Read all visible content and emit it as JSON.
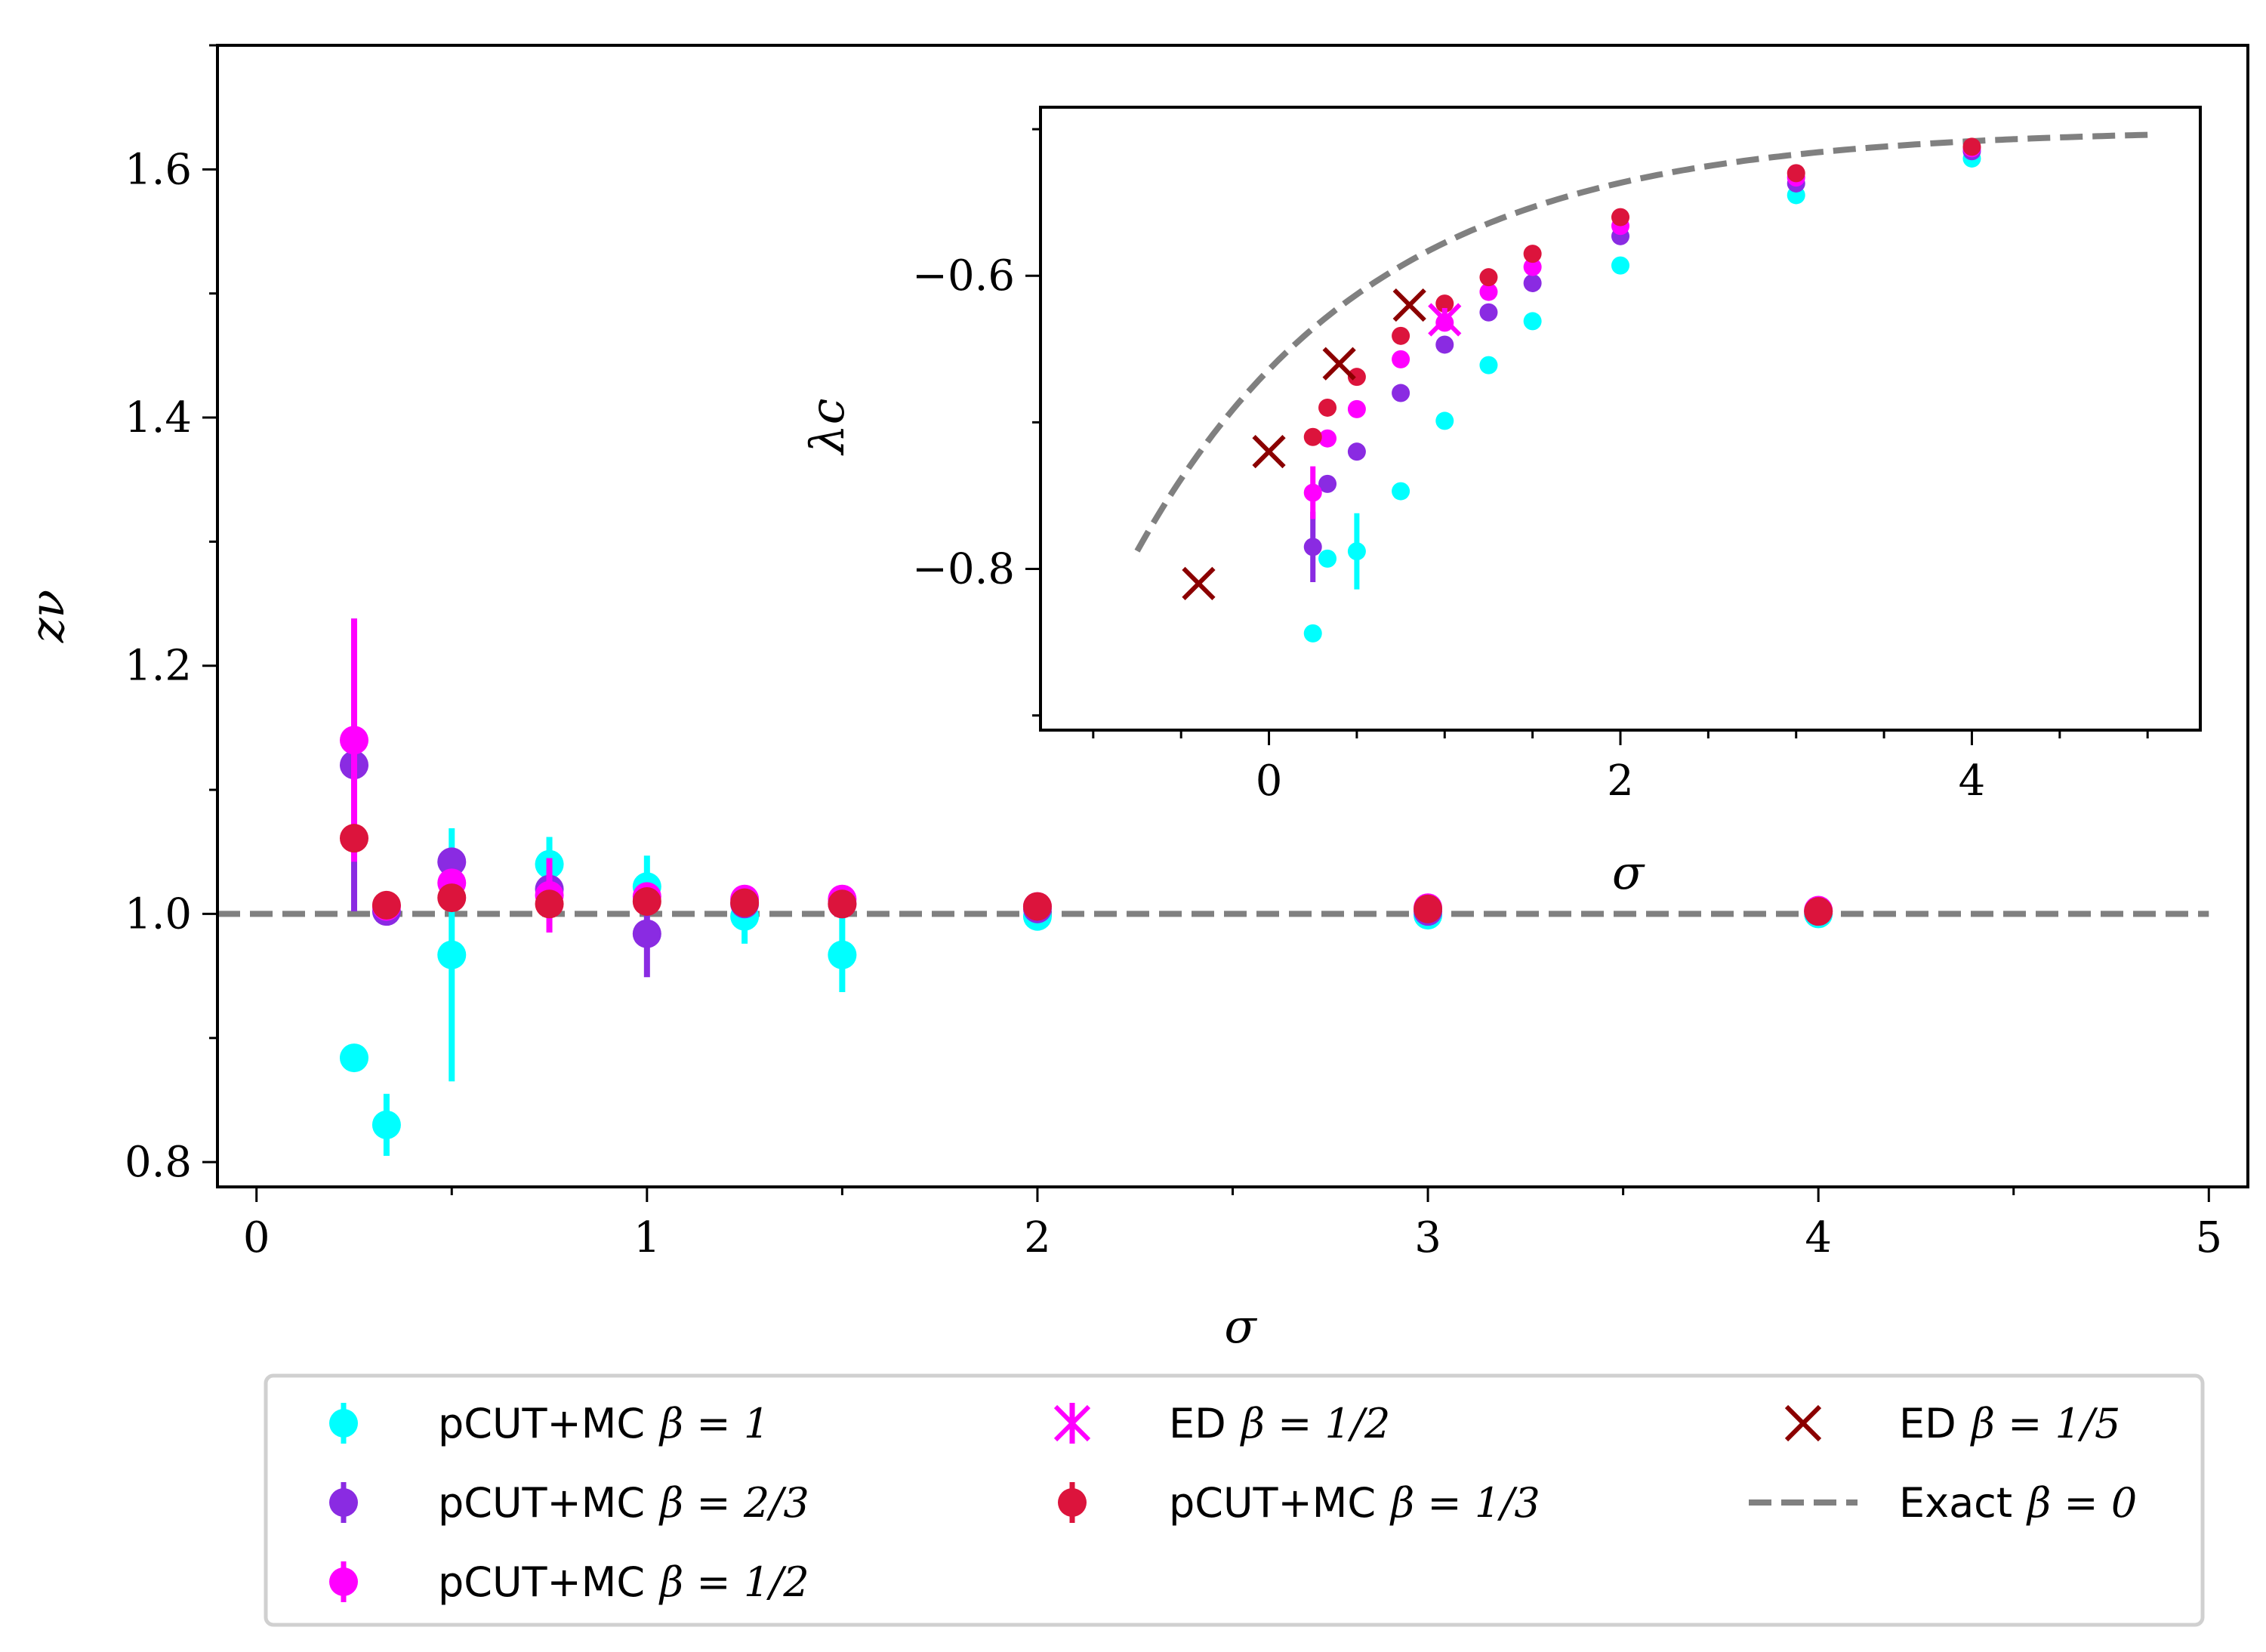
{
  "colors": {
    "beta1": "#00ffff",
    "beta23": "#8a2be2",
    "beta12": "#ff00ff",
    "beta13": "#dc143c",
    "ed15": "#8b0000",
    "exact": "#808080"
  },
  "chart_data": [
    {
      "type": "scatter",
      "xlabel": "σ",
      "ylabel": "zν",
      "xlim": [
        -0.1,
        5.1
      ],
      "ylim": [
        0.78,
        1.7
      ],
      "xticks": [
        0,
        1,
        2,
        3,
        4,
        5
      ],
      "xtick_labels": [
        "0",
        "1",
        "2",
        "3",
        "4",
        "5"
      ],
      "yticks": [
        0.8,
        1.0,
        1.2,
        1.4,
        1.6
      ],
      "ytick_labels": [
        "0.8",
        "1.0",
        "1.2",
        "1.4",
        "1.6"
      ],
      "series": [
        {
          "name": "pCUT+MC β = 1",
          "color_key": "beta1",
          "marker": "circle",
          "points": [
            {
              "x": 0.25,
              "y": 0.884,
              "err": 0.0
            },
            {
              "x": 0.333,
              "y": 0.83,
              "err": 0.025
            },
            {
              "x": 0.5,
              "y": 0.967,
              "err": 0.102
            },
            {
              "x": 0.75,
              "y": 1.04,
              "err": 0.022
            },
            {
              "x": 1.0,
              "y": 1.022,
              "err": 0.025
            },
            {
              "x": 1.25,
              "y": 0.998,
              "err": 0.022
            },
            {
              "x": 1.5,
              "y": 0.967,
              "err": 0.03
            },
            {
              "x": 2.0,
              "y": 0.998,
              "err": 0.0
            },
            {
              "x": 3.0,
              "y": 0.999,
              "err": 0.0
            },
            {
              "x": 4.0,
              "y": 1.0,
              "err": 0.0
            }
          ]
        },
        {
          "name": "pCUT+MC β = 2/3",
          "color_key": "beta23",
          "marker": "circle",
          "points": [
            {
              "x": 0.25,
              "y": 1.12,
              "err": 0.118
            },
            {
              "x": 0.333,
              "y": 1.002,
              "err": 0.0
            },
            {
              "x": 0.5,
              "y": 1.042,
              "err": 0.0
            },
            {
              "x": 0.75,
              "y": 1.02,
              "err": 0.0
            },
            {
              "x": 1.0,
              "y": 0.984,
              "err": 0.035
            },
            {
              "x": 1.25,
              "y": 1.008,
              "err": 0.0
            },
            {
              "x": 1.5,
              "y": 1.008,
              "err": 0.0
            },
            {
              "x": 2.0,
              "y": 1.004,
              "err": 0.0
            },
            {
              "x": 3.0,
              "y": 1.002,
              "err": 0.0
            },
            {
              "x": 4.0,
              "y": 1.002,
              "err": 0.0
            }
          ]
        },
        {
          "name": "pCUT+MC β = 1/2",
          "color_key": "beta12",
          "marker": "circle",
          "points": [
            {
              "x": 0.25,
              "y": 1.14,
              "err": 0.098
            },
            {
              "x": 0.333,
              "y": 1.006,
              "err": 0.0
            },
            {
              "x": 0.5,
              "y": 1.025,
              "err": 0.0
            },
            {
              "x": 0.75,
              "y": 1.015,
              "err": 0.03
            },
            {
              "x": 1.0,
              "y": 1.014,
              "err": 0.0
            },
            {
              "x": 1.25,
              "y": 1.012,
              "err": 0.0
            },
            {
              "x": 1.5,
              "y": 1.012,
              "err": 0.0
            },
            {
              "x": 2.0,
              "y": 1.006,
              "err": 0.0
            },
            {
              "x": 3.0,
              "y": 1.005,
              "err": 0.0
            },
            {
              "x": 4.0,
              "y": 1.003,
              "err": 0.0
            }
          ]
        },
        {
          "name": "pCUT+MC β = 1/3",
          "color_key": "beta13",
          "marker": "circle",
          "points": [
            {
              "x": 0.25,
              "y": 1.061,
              "err": 0.0
            },
            {
              "x": 0.333,
              "y": 1.007,
              "err": 0.0
            },
            {
              "x": 0.5,
              "y": 1.013,
              "err": 0.0
            },
            {
              "x": 0.75,
              "y": 1.008,
              "err": 0.0
            },
            {
              "x": 1.0,
              "y": 1.01,
              "err": 0.0
            },
            {
              "x": 1.25,
              "y": 1.009,
              "err": 0.0
            },
            {
              "x": 1.5,
              "y": 1.008,
              "err": 0.0
            },
            {
              "x": 2.0,
              "y": 1.006,
              "err": 0.0
            },
            {
              "x": 3.0,
              "y": 1.004,
              "err": 0.0
            },
            {
              "x": 4.0,
              "y": 1.002,
              "err": 0.0
            }
          ]
        },
        {
          "name": "Exact β = 0",
          "color_key": "exact",
          "marker": "dashed-line",
          "line": [
            [
              -0.1,
              1.0
            ],
            [
              5.0,
              1.0
            ]
          ]
        }
      ]
    },
    {
      "type": "scatter",
      "xlabel": "σ",
      "ylabel": "λc",
      "xlim": [
        -1.3,
        5.3
      ],
      "ylim": [
        -0.91,
        -0.485
      ],
      "xticks": [
        0,
        2,
        4
      ],
      "xtick_labels": [
        "0",
        "2",
        "4"
      ],
      "yticks": [
        -0.8,
        -0.6
      ],
      "ytick_labels": [
        "−0.8",
        "−0.6"
      ],
      "series": [
        {
          "name": "pCUT+MC β = 1",
          "color_key": "beta1",
          "marker": "circle",
          "points": [
            {
              "x": 0.25,
              "y": -0.844,
              "err": 0.0
            },
            {
              "x": 0.333,
              "y": -0.793,
              "err": 0.0
            },
            {
              "x": 0.5,
              "y": -0.788,
              "err": 0.026
            },
            {
              "x": 0.75,
              "y": -0.747,
              "err": 0.0
            },
            {
              "x": 1.0,
              "y": -0.699,
              "err": 0.0
            },
            {
              "x": 1.25,
              "y": -0.661,
              "err": 0.0
            },
            {
              "x": 1.5,
              "y": -0.631,
              "err": 0.0
            },
            {
              "x": 2.0,
              "y": -0.593,
              "err": 0.0
            },
            {
              "x": 3.0,
              "y": -0.545,
              "err": 0.0
            },
            {
              "x": 4.0,
              "y": -0.52,
              "err": 0.0
            }
          ]
        },
        {
          "name": "pCUT+MC β = 2/3",
          "color_key": "beta23",
          "marker": "circle",
          "points": [
            {
              "x": 0.25,
              "y": -0.785,
              "err": 0.024
            },
            {
              "x": 0.333,
              "y": -0.742,
              "err": 0.0
            },
            {
              "x": 0.5,
              "y": -0.72,
              "err": 0.0
            },
            {
              "x": 0.75,
              "y": -0.68,
              "err": 0.0
            },
            {
              "x": 1.0,
              "y": -0.647,
              "err": 0.0
            },
            {
              "x": 1.25,
              "y": -0.625,
              "err": 0.0
            },
            {
              "x": 1.5,
              "y": -0.605,
              "err": 0.0
            },
            {
              "x": 2.0,
              "y": -0.573,
              "err": 0.0
            },
            {
              "x": 3.0,
              "y": -0.537,
              "err": 0.0
            },
            {
              "x": 4.0,
              "y": -0.515,
              "err": 0.0
            }
          ]
        },
        {
          "name": "pCUT+MC β = 1/2",
          "color_key": "beta12",
          "marker": "circle",
          "points": [
            {
              "x": 0.25,
              "y": -0.748,
              "err": 0.018
            },
            {
              "x": 0.333,
              "y": -0.711,
              "err": 0.0
            },
            {
              "x": 0.5,
              "y": -0.691,
              "err": 0.0
            },
            {
              "x": 0.75,
              "y": -0.657,
              "err": 0.0
            },
            {
              "x": 1.0,
              "y": -0.632,
              "err": 0.0
            },
            {
              "x": 1.25,
              "y": -0.611,
              "err": 0.0
            },
            {
              "x": 1.5,
              "y": -0.594,
              "err": 0.0
            },
            {
              "x": 2.0,
              "y": -0.566,
              "err": 0.0
            },
            {
              "x": 3.0,
              "y": -0.533,
              "err": 0.0
            },
            {
              "x": 4.0,
              "y": -0.513,
              "err": 0.0
            }
          ]
        },
        {
          "name": "pCUT+MC β = 1/3",
          "color_key": "beta13",
          "marker": "circle",
          "points": [
            {
              "x": 0.25,
              "y": -0.71,
              "err": 0.0
            },
            {
              "x": 0.333,
              "y": -0.69,
              "err": 0.0
            },
            {
              "x": 0.5,
              "y": -0.669,
              "err": 0.0
            },
            {
              "x": 0.75,
              "y": -0.641,
              "err": 0.0
            },
            {
              "x": 1.0,
              "y": -0.619,
              "err": 0.0
            },
            {
              "x": 1.25,
              "y": -0.601,
              "err": 0.0
            },
            {
              "x": 1.5,
              "y": -0.585,
              "err": 0.0
            },
            {
              "x": 2.0,
              "y": -0.56,
              "err": 0.0
            },
            {
              "x": 3.0,
              "y": -0.53,
              "err": 0.0
            },
            {
              "x": 4.0,
              "y": -0.512,
              "err": 0.0
            }
          ]
        },
        {
          "name": "ED β = 1/2",
          "color_key": "beta12",
          "marker": "x-with-errorbar",
          "points": [
            {
              "x": 1.0,
              "y": -0.63,
              "err": 0.008
            }
          ]
        },
        {
          "name": "ED β = 1/5",
          "color_key": "ed15",
          "marker": "x",
          "points": [
            {
              "x": -0.4,
              "y": -0.81
            },
            {
              "x": 0.0,
              "y": -0.72
            },
            {
              "x": 0.4,
              "y": -0.66
            },
            {
              "x": 0.8,
              "y": -0.62
            }
          ]
        },
        {
          "name": "Exact β = 0",
          "color_key": "exact",
          "marker": "dashed-curve",
          "curve": {
            "x_start": -0.75,
            "x_end": 5.0,
            "asymptote": -0.5,
            "amplitude": 0.164,
            "rate": 0.75
          }
        }
      ]
    }
  ],
  "legend": {
    "placement": "bottom",
    "entries": [
      {
        "prefix": "pCUT+MC",
        "math": "β = 1",
        "color_key": "beta1",
        "marker": "circle-errorbar"
      },
      {
        "prefix": "pCUT+MC",
        "math": "β = 2/3",
        "color_key": "beta23",
        "marker": "circle-errorbar"
      },
      {
        "prefix": "pCUT+MC",
        "math": "β = 1/2",
        "color_key": "beta12",
        "marker": "circle-errorbar"
      },
      {
        "prefix": "ED",
        "math": "β = 1/2",
        "color_key": "beta12",
        "marker": "x-errorbar"
      },
      {
        "prefix": "pCUT+MC",
        "math": "β = 1/3",
        "color_key": "beta13",
        "marker": "circle-errorbar"
      },
      {
        "prefix": "ED",
        "math": "β = 1/5",
        "color_key": "ed15",
        "marker": "x"
      },
      {
        "prefix": "Exact",
        "math": "β = 0",
        "color_key": "exact",
        "marker": "dashed-line"
      }
    ]
  }
}
